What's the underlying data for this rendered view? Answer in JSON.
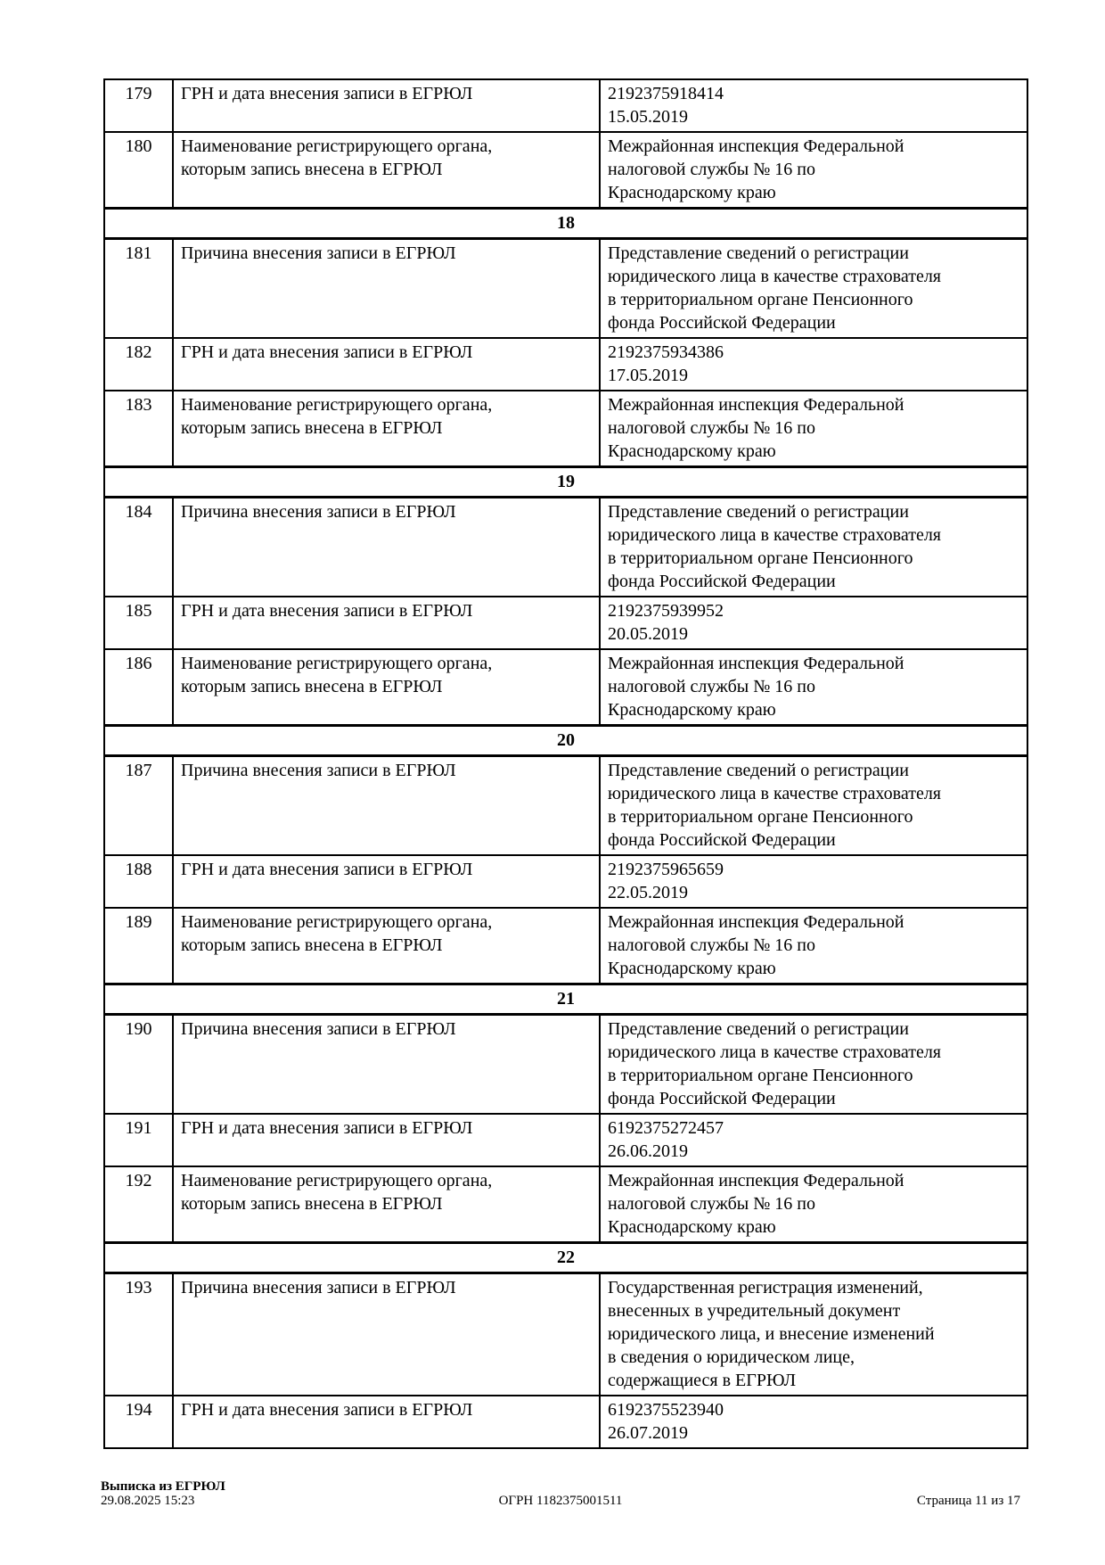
{
  "document": {
    "rows": [
      {
        "type": "record",
        "num": "179",
        "label_lines": [
          "ГРН и дата внесения записи в ЕГРЮЛ"
        ],
        "value_lines": [
          "2192375918414",
          "15.05.2019"
        ]
      },
      {
        "type": "record",
        "num": "180",
        "label_lines": [
          "Наименование регистрирующего органа,",
          "которым запись внесена в ЕГРЮЛ"
        ],
        "value_lines": [
          "Межрайонная инспекция Федеральной",
          "налоговой службы № 16 по",
          "Краснодарскому краю"
        ]
      },
      {
        "type": "section",
        "num": "18"
      },
      {
        "type": "record",
        "num": "181",
        "label_lines": [
          "Причина внесения записи в ЕГРЮЛ"
        ],
        "value_lines": [
          "Представление сведений о регистрации",
          "юридического лица в качестве страхователя",
          "в территориальном органе Пенсионного",
          "фонда Российской Федерации"
        ]
      },
      {
        "type": "record",
        "num": "182",
        "label_lines": [
          "ГРН и дата внесения записи в ЕГРЮЛ"
        ],
        "value_lines": [
          "2192375934386",
          "17.05.2019"
        ]
      },
      {
        "type": "record",
        "num": "183",
        "label_lines": [
          "Наименование регистрирующего органа,",
          "которым запись внесена в ЕГРЮЛ"
        ],
        "value_lines": [
          "Межрайонная инспекция Федеральной",
          "налоговой службы № 16 по",
          "Краснодарскому краю"
        ]
      },
      {
        "type": "section",
        "num": "19"
      },
      {
        "type": "record",
        "num": "184",
        "label_lines": [
          "Причина внесения записи в ЕГРЮЛ"
        ],
        "value_lines": [
          "Представление сведений о регистрации",
          "юридического лица в качестве страхователя",
          "в территориальном органе Пенсионного",
          "фонда Российской Федерации"
        ]
      },
      {
        "type": "record",
        "num": "185",
        "label_lines": [
          "ГРН и дата внесения записи в ЕГРЮЛ"
        ],
        "value_lines": [
          "2192375939952",
          "20.05.2019"
        ]
      },
      {
        "type": "record",
        "num": "186",
        "label_lines": [
          "Наименование регистрирующего органа,",
          "которым запись внесена в ЕГРЮЛ"
        ],
        "value_lines": [
          "Межрайонная инспекция Федеральной",
          "налоговой службы № 16 по",
          "Краснодарскому краю"
        ]
      },
      {
        "type": "section",
        "num": "20"
      },
      {
        "type": "record",
        "num": "187",
        "label_lines": [
          "Причина внесения записи в ЕГРЮЛ"
        ],
        "value_lines": [
          "Представление сведений о регистрации",
          "юридического лица в качестве страхователя",
          "в территориальном органе Пенсионного",
          "фонда Российской Федерации"
        ]
      },
      {
        "type": "record",
        "num": "188",
        "label_lines": [
          "ГРН и дата внесения записи в ЕГРЮЛ"
        ],
        "value_lines": [
          "2192375965659",
          "22.05.2019"
        ]
      },
      {
        "type": "record",
        "num": "189",
        "label_lines": [
          "Наименование регистрирующего органа,",
          "которым запись внесена в ЕГРЮЛ"
        ],
        "value_lines": [
          "Межрайонная инспекция Федеральной",
          "налоговой службы № 16 по",
          "Краснодарскому краю"
        ]
      },
      {
        "type": "section",
        "num": "21"
      },
      {
        "type": "record",
        "num": "190",
        "label_lines": [
          "Причина внесения записи в ЕГРЮЛ"
        ],
        "value_lines": [
          "Представление сведений о регистрации",
          "юридического лица в качестве страхователя",
          "в территориальном органе Пенсионного",
          "фонда Российской Федерации"
        ]
      },
      {
        "type": "record",
        "num": "191",
        "label_lines": [
          "ГРН и дата внесения записи в ЕГРЮЛ"
        ],
        "value_lines": [
          "6192375272457",
          "26.06.2019"
        ]
      },
      {
        "type": "record",
        "num": "192",
        "label_lines": [
          "Наименование регистрирующего органа,",
          "которым запись внесена в ЕГРЮЛ"
        ],
        "value_lines": [
          "Межрайонная инспекция Федеральной",
          "налоговой службы № 16 по",
          "Краснодарскому краю"
        ]
      },
      {
        "type": "section",
        "num": "22"
      },
      {
        "type": "record",
        "num": "193",
        "label_lines": [
          "Причина внесения записи в ЕГРЮЛ"
        ],
        "value_lines": [
          "Государственная регистрация изменений,",
          "внесенных в учредительный документ",
          "юридического лица, и внесение изменений",
          "в сведения о юридическом лице,",
          "содержащиеся в ЕГРЮЛ"
        ]
      },
      {
        "type": "record",
        "num": "194",
        "label_lines": [
          "ГРН и дата внесения записи в ЕГРЮЛ"
        ],
        "value_lines": [
          "6192375523940",
          "26.07.2019"
        ]
      }
    ],
    "footer": {
      "doc_title": "Выписка из ЕГРЮЛ",
      "datetime": "29.08.2025 15:23",
      "ogrn": "ОГРН 1182375001511",
      "page": "Страница 11 из 17"
    }
  }
}
